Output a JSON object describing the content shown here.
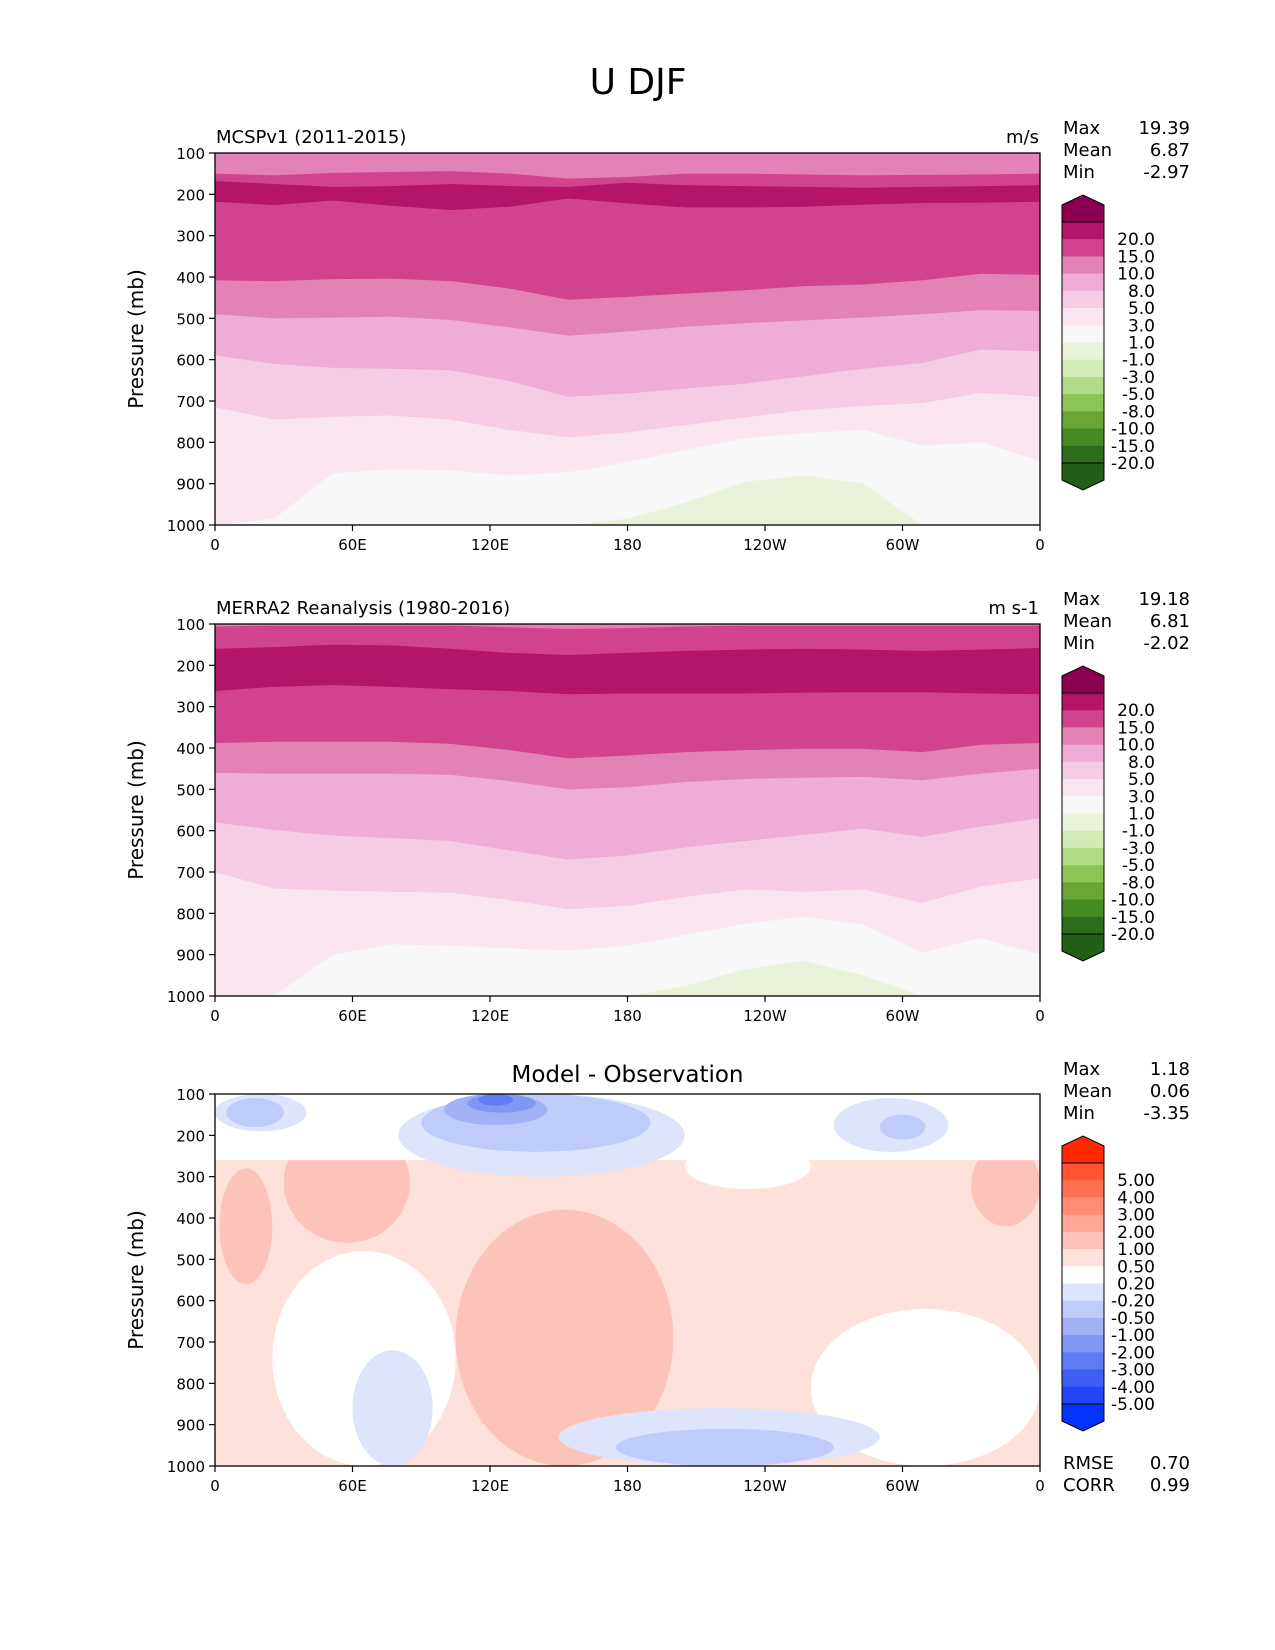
{
  "figure_title": "U DJF",
  "chart_data": [
    {
      "type": "contour",
      "panel_title": "MCSPv1 (2011-2015)",
      "units": "m/s",
      "ylabel": "Pressure (mb)",
      "xlabel": "",
      "x_ticks": [
        "0",
        "60E",
        "120E",
        "180",
        "120W",
        "60W",
        "0"
      ],
      "x_range_deg": [
        0,
        360
      ],
      "y_ticks": [
        100,
        200,
        300,
        400,
        500,
        600,
        700,
        800,
        900,
        1000
      ],
      "y_range": [
        100,
        1000
      ],
      "y_inverted": true,
      "stats": [
        {
          "label": "Max",
          "value": "19.39"
        },
        {
          "label": "Mean",
          "value": "6.87"
        },
        {
          "label": "Min",
          "value": "-2.97"
        }
      ],
      "colorbar": {
        "extend": "both",
        "labels": [
          "20.0",
          "15.0",
          "10.0",
          "8.0",
          "5.0",
          "3.0",
          "1.0",
          "-1.0",
          "-3.0",
          "-5.0",
          "-8.0",
          "-10.0",
          "-15.0",
          "-20.0"
        ],
        "colors": [
          "#8b0050",
          "#b5146b",
          "#d1438f",
          "#e382b4",
          "#eeadd4",
          "#f6cbe4",
          "#fae6f0",
          "#f7f7f7",
          "#e8f3d9",
          "#d2ebb5",
          "#b0dc86",
          "#8bc457",
          "#6aa635",
          "#468a24",
          "#2e6b1a",
          "#245f18"
        ]
      },
      "bands": [
        {
          "value_range": [
            15,
            20
          ],
          "top": [
            168,
            175,
            182,
            180,
            175,
            180,
            182,
            172,
            178,
            180,
            182,
            184,
            182,
            180,
            178
          ],
          "bottom": [
            218,
            226,
            215,
            228,
            238,
            230,
            210,
            222,
            232,
            232,
            230,
            225,
            221,
            220,
            218
          ]
        },
        {
          "value_range": [
            10,
            15
          ],
          "top": [
            150,
            154,
            148,
            146,
            144,
            150,
            162,
            158,
            150,
            150,
            152,
            154,
            153,
            152,
            150
          ],
          "bottom": [
            408,
            410,
            405,
            404,
            410,
            428,
            455,
            448,
            440,
            432,
            422,
            418,
            408,
            392,
            395
          ]
        },
        {
          "value_range": [
            8,
            10
          ],
          "top": [
            100,
            100,
            100,
            100,
            100,
            100,
            100,
            100,
            100,
            100,
            100,
            100,
            100,
            100,
            100
          ],
          "bottom": [
            490,
            500,
            498,
            496,
            504,
            522,
            542,
            532,
            520,
            512,
            505,
            498,
            490,
            480,
            482
          ]
        },
        {
          "value_range": [
            5,
            8
          ],
          "top": [
            100,
            100,
            100,
            100,
            100,
            100,
            100,
            100,
            100,
            100,
            100,
            100,
            100,
            100,
            100
          ],
          "bottom": [
            590,
            610,
            620,
            622,
            626,
            652,
            690,
            682,
            670,
            658,
            640,
            622,
            608,
            575,
            580
          ]
        },
        {
          "value_range": [
            3,
            5
          ],
          "top": [
            100,
            100,
            100,
            100,
            100,
            100,
            100,
            100,
            100,
            100,
            100,
            100,
            100,
            100,
            100
          ],
          "bottom": [
            715,
            745,
            738,
            735,
            745,
            770,
            788,
            776,
            758,
            740,
            722,
            712,
            705,
            680,
            690
          ]
        },
        {
          "value_range": [
            1,
            3
          ],
          "top": [
            100,
            100,
            100,
            100,
            100,
            100,
            100,
            100,
            100,
            100,
            100,
            100,
            100,
            100,
            100
          ],
          "bottom": [
            1000,
            985,
            875,
            865,
            868,
            880,
            872,
            848,
            818,
            790,
            778,
            770,
            808,
            800,
            845
          ]
        },
        {
          "value_range": [
            -1,
            -3
          ],
          "top": [
            1000,
            1000,
            1000,
            1000,
            1000,
            1000,
            1000,
            985,
            945,
            895,
            880,
            900,
            1000,
            1000,
            1000
          ],
          "bottom": [
            1000,
            1000,
            1000,
            1000,
            1000,
            1000,
            1000,
            1000,
            1000,
            1000,
            1000,
            1000,
            1000,
            1000,
            1000
          ]
        }
      ]
    },
    {
      "type": "contour",
      "panel_title": "MERRA2 Reanalysis (1980-2016)",
      "units": "m s-1",
      "ylabel": "Pressure (mb)",
      "xlabel": "",
      "x_ticks": [
        "0",
        "60E",
        "120E",
        "180",
        "120W",
        "60W",
        "0"
      ],
      "x_range_deg": [
        0,
        360
      ],
      "y_ticks": [
        100,
        200,
        300,
        400,
        500,
        600,
        700,
        800,
        900,
        1000
      ],
      "y_range": [
        100,
        1000
      ],
      "y_inverted": true,
      "stats": [
        {
          "label": "Max",
          "value": "19.18"
        },
        {
          "label": "Mean",
          "value": "6.81"
        },
        {
          "label": "Min",
          "value": "-2.02"
        }
      ],
      "colorbar": {
        "extend": "both",
        "labels": [
          "20.0",
          "15.0",
          "10.0",
          "8.0",
          "5.0",
          "3.0",
          "1.0",
          "-1.0",
          "-3.0",
          "-5.0",
          "-8.0",
          "-10.0",
          "-15.0",
          "-20.0"
        ],
        "colors": [
          "#8b0050",
          "#b5146b",
          "#d1438f",
          "#e382b4",
          "#eeadd4",
          "#f6cbe4",
          "#fae6f0",
          "#f7f7f7",
          "#e8f3d9",
          "#d2ebb5",
          "#b0dc86",
          "#8bc457",
          "#6aa635",
          "#468a24",
          "#2e6b1a",
          "#245f18"
        ]
      },
      "bands": [
        {
          "value_range": [
            15,
            20
          ],
          "top": [
            160,
            156,
            150,
            152,
            160,
            170,
            175,
            170,
            165,
            162,
            160,
            162,
            165,
            162,
            158
          ],
          "bottom": [
            262,
            252,
            248,
            252,
            258,
            262,
            270,
            268,
            268,
            268,
            266,
            265,
            265,
            268,
            270
          ]
        },
        {
          "value_range": [
            10,
            15
          ],
          "top": [
            106,
            104,
            104,
            104,
            104,
            108,
            112,
            110,
            106,
            104,
            104,
            104,
            104,
            104,
            104
          ],
          "bottom": [
            388,
            385,
            385,
            385,
            390,
            405,
            425,
            418,
            410,
            405,
            402,
            402,
            410,
            392,
            388
          ]
        },
        {
          "value_range": [
            8,
            10
          ],
          "top": [
            100,
            100,
            100,
            100,
            100,
            100,
            100,
            100,
            100,
            100,
            100,
            100,
            100,
            100,
            100
          ],
          "bottom": [
            460,
            462,
            462,
            462,
            465,
            480,
            500,
            495,
            482,
            475,
            472,
            470,
            478,
            462,
            450
          ]
        },
        {
          "value_range": [
            5,
            8
          ],
          "top": [
            100,
            100,
            100,
            100,
            100,
            100,
            100,
            100,
            100,
            100,
            100,
            100,
            100,
            100,
            100
          ],
          "bottom": [
            580,
            598,
            612,
            618,
            625,
            648,
            670,
            660,
            640,
            625,
            610,
            595,
            615,
            590,
            570
          ]
        },
        {
          "value_range": [
            3,
            5
          ],
          "top": [
            100,
            100,
            100,
            100,
            100,
            100,
            100,
            100,
            100,
            100,
            100,
            100,
            100,
            100,
            100
          ],
          "bottom": [
            700,
            740,
            745,
            748,
            750,
            768,
            790,
            782,
            760,
            742,
            748,
            742,
            775,
            735,
            715
          ]
        },
        {
          "value_range": [
            1,
            3
          ],
          "top": [
            100,
            100,
            100,
            100,
            100,
            100,
            100,
            100,
            100,
            100,
            100,
            100,
            100,
            100,
            100
          ],
          "bottom": [
            1000,
            1000,
            900,
            875,
            878,
            885,
            890,
            878,
            852,
            825,
            808,
            828,
            895,
            860,
            900
          ]
        },
        {
          "value_range": [
            -1,
            -3
          ],
          "top": [
            1000,
            1000,
            1000,
            1000,
            1000,
            1000,
            1000,
            1000,
            975,
            935,
            915,
            950,
            1000,
            1000,
            1000
          ],
          "bottom": [
            1000,
            1000,
            1000,
            1000,
            1000,
            1000,
            1000,
            1000,
            1000,
            1000,
            1000,
            1000,
            1000,
            1000,
            1000
          ]
        }
      ]
    },
    {
      "type": "contour",
      "panel_title": "Model - Observation",
      "units": "",
      "ylabel": "Pressure (mb)",
      "xlabel": "",
      "x_ticks": [
        "0",
        "60E",
        "120E",
        "180",
        "120W",
        "60W",
        "0"
      ],
      "x_range_deg": [
        0,
        360
      ],
      "y_ticks": [
        100,
        200,
        300,
        400,
        500,
        600,
        700,
        800,
        900,
        1000
      ],
      "y_range": [
        100,
        1000
      ],
      "y_inverted": true,
      "stats": [
        {
          "label": "Max",
          "value": "1.18"
        },
        {
          "label": "Mean",
          "value": "0.06"
        },
        {
          "label": "Min",
          "value": "-3.35"
        }
      ],
      "stats_bottom": [
        {
          "label": "RMSE",
          "value": "0.70"
        },
        {
          "label": "CORR",
          "value": "0.99"
        }
      ],
      "colorbar": {
        "extend": "both",
        "labels": [
          "5.00",
          "4.00",
          "3.00",
          "2.00",
          "1.00",
          "0.50",
          "0.20",
          "-0.20",
          "-0.50",
          "-1.00",
          "-2.00",
          "-3.00",
          "-4.00",
          "-5.00"
        ],
        "colors": [
          "#ff2a00",
          "#ff5535",
          "#ff6f50",
          "#ff8b73",
          "#fda897",
          "#fcc4b8",
          "#fde1da",
          "#ffffff",
          "#dde4fc",
          "#bfcbf8",
          "#a0b2f5",
          "#8097f3",
          "#5f7cf2",
          "#3f5ef4",
          "#2246f7",
          "#0233ff"
        ]
      },
      "regions": [
        {
          "value_range": [
            0.2,
            0.5
          ],
          "lon": [
            0,
            360
          ],
          "p": [
            250,
            1000
          ],
          "shape": "box"
        },
        {
          "value_range": [
            0.5,
            1.0
          ],
          "lon": [
            2,
            25
          ],
          "p": [
            280,
            560
          ],
          "shape": "ellipse"
        },
        {
          "value_range": [
            0.5,
            1.0
          ],
          "lon": [
            30,
            85
          ],
          "p": [
            170,
            460
          ],
          "shape": "ellipse"
        },
        {
          "value_range": [
            0.5,
            1.0
          ],
          "lon": [
            105,
            200
          ],
          "p": [
            380,
            1000
          ],
          "shape": "ellipse"
        },
        {
          "value_range": [
            0.5,
            1.0
          ],
          "lon": [
            330,
            360
          ],
          "p": [
            220,
            420
          ],
          "shape": "ellipse"
        },
        {
          "value_range": [
            -0.2,
            0.2
          ],
          "lon": [
            25,
            105
          ],
          "p": [
            480,
            1000
          ],
          "shape": "ellipse"
        },
        {
          "value_range": [
            -0.2,
            0.2
          ],
          "lon": [
            205,
            260
          ],
          "p": [
            220,
            330
          ],
          "shape": "ellipse"
        },
        {
          "value_range": [
            -0.2,
            0.2
          ],
          "lon": [
            260,
            360
          ],
          "p": [
            620,
            1000
          ],
          "shape": "ellipse"
        },
        {
          "value_range": [
            -0.2,
            0.2
          ],
          "lon": [
            0,
            360
          ],
          "p": [
            100,
            260
          ],
          "shape": "box"
        },
        {
          "value_range": [
            -0.5,
            -0.2
          ],
          "lon": [
            0,
            40
          ],
          "p": [
            100,
            190
          ],
          "shape": "ellipse"
        },
        {
          "value_range": [
            -0.5,
            -0.2
          ],
          "lon": [
            80,
            205
          ],
          "p": [
            100,
            300
          ],
          "shape": "ellipse"
        },
        {
          "value_range": [
            -0.5,
            -0.2
          ],
          "lon": [
            270,
            320
          ],
          "p": [
            110,
            240
          ],
          "shape": "ellipse"
        },
        {
          "value_range": [
            -0.5,
            -0.2
          ],
          "lon": [
            150,
            290
          ],
          "p": [
            860,
            1000
          ],
          "shape": "ellipse"
        },
        {
          "value_range": [
            -0.5,
            -0.2
          ],
          "lon": [
            60,
            95
          ],
          "p": [
            720,
            1000
          ],
          "shape": "ellipse"
        },
        {
          "value_range": [
            -1.0,
            -0.5
          ],
          "lon": [
            5,
            30
          ],
          "p": [
            110,
            180
          ],
          "shape": "ellipse"
        },
        {
          "value_range": [
            -1.0,
            -0.5
          ],
          "lon": [
            90,
            190
          ],
          "p": [
            100,
            240
          ],
          "shape": "ellipse"
        },
        {
          "value_range": [
            -1.0,
            -0.5
          ],
          "lon": [
            175,
            270
          ],
          "p": [
            910,
            1000
          ],
          "shape": "ellipse"
        },
        {
          "value_range": [
            -1.0,
            -0.5
          ],
          "lon": [
            290,
            310
          ],
          "p": [
            150,
            210
          ],
          "shape": "ellipse"
        },
        {
          "value_range": [
            -2.0,
            -1.0
          ],
          "lon": [
            100,
            145
          ],
          "p": [
            100,
            175
          ],
          "shape": "ellipse"
        },
        {
          "value_range": [
            -3.0,
            -2.0
          ],
          "lon": [
            110,
            140
          ],
          "p": [
            100,
            145
          ],
          "shape": "ellipse"
        },
        {
          "value_range": [
            -4.0,
            -3.0
          ],
          "lon": [
            115,
            130
          ],
          "p": [
            100,
            128
          ],
          "shape": "ellipse"
        }
      ]
    }
  ]
}
